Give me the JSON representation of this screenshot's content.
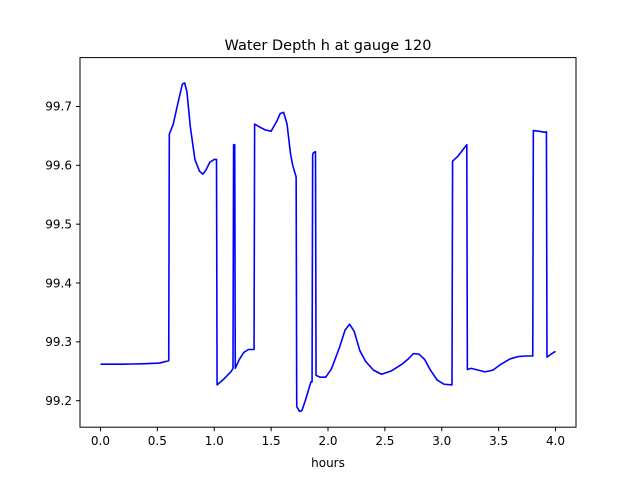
{
  "chart_data": {
    "type": "line",
    "title": "Water Depth h at gauge 120",
    "xlabel": "hours",
    "ylabel": "",
    "xlim": [
      -0.18,
      4.18
    ],
    "ylim": [
      99.155,
      99.783
    ],
    "xticks": [
      0.0,
      0.5,
      1.0,
      1.5,
      2.0,
      2.5,
      3.0,
      3.5,
      4.0
    ],
    "xtick_labels": [
      "0.0",
      "0.5",
      "1.0",
      "1.5",
      "2.0",
      "2.5",
      "3.0",
      "3.5",
      "4.0"
    ],
    "yticks": [
      99.2,
      99.3,
      99.4,
      99.5,
      99.6,
      99.7
    ],
    "ytick_labels": [
      "99.2",
      "99.3",
      "99.4",
      "99.5",
      "99.6",
      "99.7"
    ],
    "grid": false,
    "legend": "none",
    "series": [
      {
        "color": "#0000ff",
        "x": [
          0.0,
          0.2,
          0.4,
          0.52,
          0.6,
          0.605,
          0.64,
          0.68,
          0.72,
          0.74,
          0.76,
          0.79,
          0.83,
          0.87,
          0.9,
          0.93,
          0.96,
          1.0,
          1.02,
          1.025,
          1.08,
          1.15,
          1.165,
          1.17,
          1.18,
          1.185,
          1.22,
          1.26,
          1.3,
          1.34,
          1.35,
          1.355,
          1.4,
          1.45,
          1.5,
          1.55,
          1.58,
          1.61,
          1.64,
          1.67,
          1.69,
          1.72,
          1.725,
          1.75,
          1.77,
          1.8,
          1.85,
          1.86,
          1.865,
          1.87,
          1.89,
          1.895,
          1.93,
          1.98,
          2.03,
          2.1,
          2.15,
          2.19,
          2.23,
          2.28,
          2.33,
          2.4,
          2.47,
          2.55,
          2.6,
          2.65,
          2.7,
          2.75,
          2.8,
          2.85,
          2.9,
          2.96,
          3.02,
          3.08,
          3.09,
          3.095,
          3.14,
          3.2,
          3.22,
          3.225,
          3.26,
          3.32,
          3.38,
          3.45,
          3.52,
          3.6,
          3.67,
          3.74,
          3.79,
          3.8,
          3.805,
          3.85,
          3.91,
          3.92,
          3.925,
          3.96,
          4.0
        ],
        "y": [
          99.262,
          99.262,
          99.263,
          99.264,
          99.268,
          99.653,
          99.67,
          99.705,
          99.738,
          99.74,
          99.725,
          99.665,
          99.61,
          99.59,
          99.585,
          99.593,
          99.605,
          99.61,
          99.61,
          99.227,
          99.236,
          99.25,
          99.255,
          99.635,
          99.635,
          99.255,
          99.27,
          99.282,
          99.287,
          99.287,
          99.287,
          99.67,
          99.665,
          99.66,
          99.658,
          99.675,
          99.688,
          99.69,
          99.67,
          99.62,
          99.6,
          99.58,
          99.19,
          99.182,
          99.183,
          99.2,
          99.232,
          99.232,
          99.617,
          99.621,
          99.623,
          99.243,
          99.24,
          99.24,
          99.254,
          99.29,
          99.32,
          99.33,
          99.318,
          99.285,
          99.267,
          99.252,
          99.245,
          99.25,
          99.256,
          99.262,
          99.27,
          99.28,
          99.279,
          99.27,
          99.252,
          99.235,
          99.228,
          99.227,
          99.227,
          99.607,
          99.615,
          99.63,
          99.635,
          99.253,
          99.255,
          99.252,
          99.249,
          99.252,
          99.262,
          99.271,
          99.275,
          99.276,
          99.276,
          99.276,
          99.659,
          99.658,
          99.656,
          99.657,
          99.274,
          99.279,
          99.284
        ]
      }
    ]
  }
}
